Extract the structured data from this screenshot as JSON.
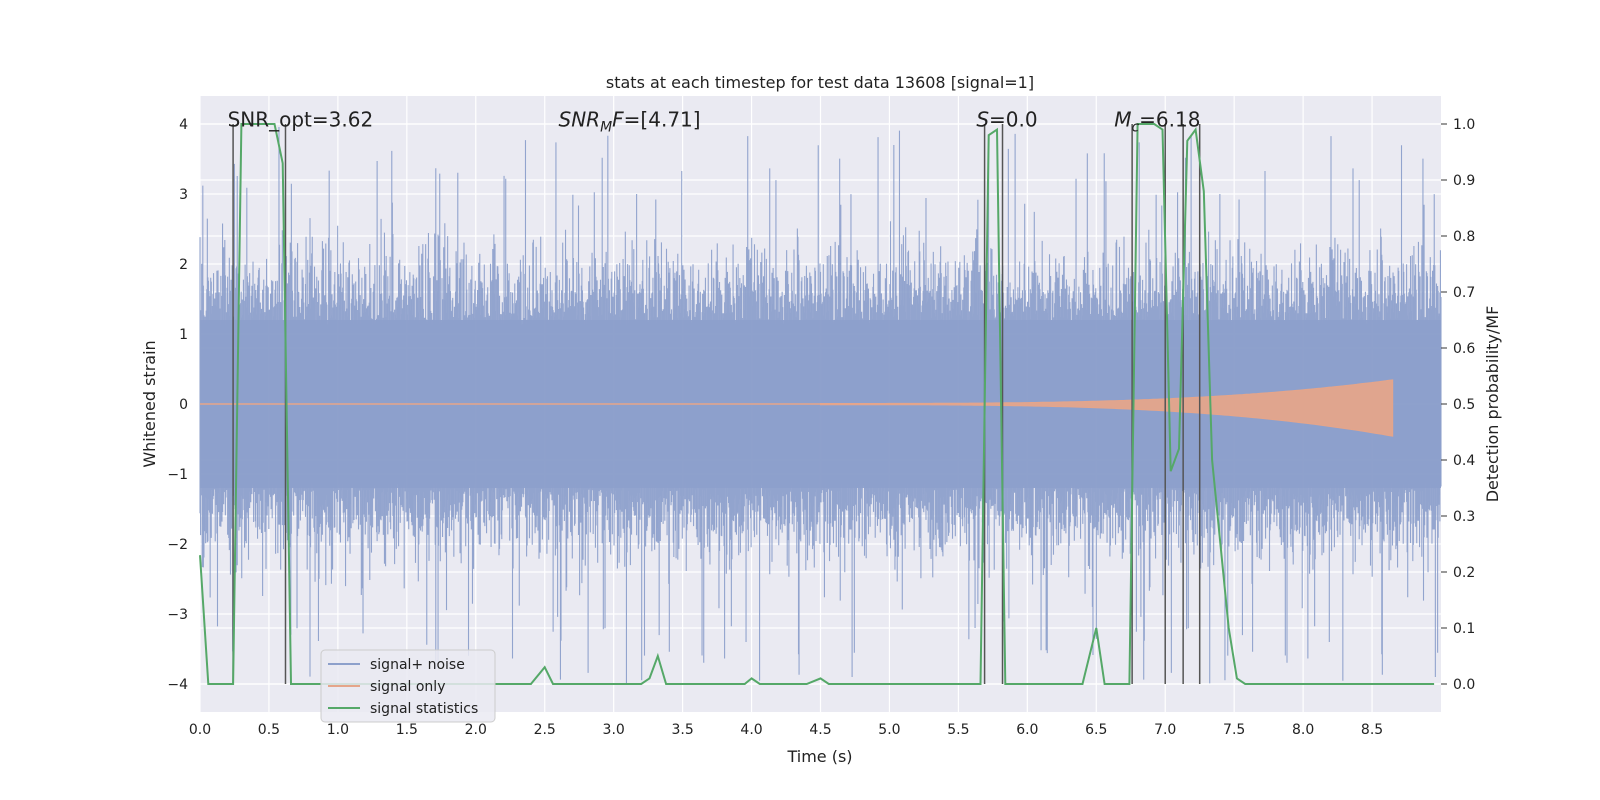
{
  "chart_data": {
    "type": "line",
    "title": "stats at each timestep for test data 13608 [signal=1]",
    "xlabel": "Time (s)",
    "ylabel_left": "Whitened strain",
    "ylabel_right": "Detection probability/MF",
    "xlim": [
      0.0,
      9.0
    ],
    "ylim_left": [
      -4.4,
      4.4
    ],
    "ylim_right": [
      -0.05,
      1.05
    ],
    "xticks": [
      0.0,
      0.5,
      1.0,
      1.5,
      2.0,
      2.5,
      3.0,
      3.5,
      4.0,
      4.5,
      5.0,
      5.5,
      6.0,
      6.5,
      7.0,
      7.5,
      8.0,
      8.5
    ],
    "xtick_labels": [
      "0.0",
      "0.5",
      "1.0",
      "1.5",
      "2.0",
      "2.5",
      "3.0",
      "3.5",
      "4.0",
      "4.5",
      "5.0",
      "5.5",
      "6.0",
      "6.5",
      "7.0",
      "7.5",
      "8.0",
      "8.5"
    ],
    "yticks_left": [
      -4,
      -3,
      -2,
      -1,
      0,
      1,
      2,
      3,
      4
    ],
    "ytick_labels_left": [
      "−4",
      "−3",
      "−2",
      "−1",
      "0",
      "1",
      "2",
      "3",
      "4"
    ],
    "yticks_right": [
      0.0,
      0.1,
      0.2,
      0.3,
      0.4,
      0.5,
      0.6,
      0.7,
      0.8,
      0.9,
      1.0
    ],
    "ytick_labels_right": [
      "0.0",
      "0.1",
      "0.2",
      "0.3",
      "0.4",
      "0.5",
      "0.6",
      "0.7",
      "0.8",
      "0.9",
      "1.0"
    ],
    "annotations": [
      {
        "id": "snr-opt",
        "text": "SNR_opt=3.62",
        "x": 0.2,
        "y": 4.05
      },
      {
        "id": "snr-mf",
        "base": "SNR",
        "sub": "M",
        "tail": "F=[4.71]",
        "x": 2.6,
        "y": 4.05
      },
      {
        "id": "s-stat",
        "base": "S",
        "sub": "",
        "tail": "=0.0",
        "x": 5.63,
        "y": 4.05
      },
      {
        "id": "chirp-mass",
        "base": "M",
        "sub": "c",
        "tail": "=6.18",
        "x": 6.63,
        "y": 4.05
      }
    ],
    "vertical_lines": [
      0.24,
      0.62,
      5.69,
      5.82,
      6.76,
      7.0,
      7.13,
      7.25
    ],
    "legend": {
      "position": "lower-left",
      "entries": [
        {
          "label": "signal+ noise",
          "color": "#8da0cb"
        },
        {
          "label": "signal only",
          "color": "#e5a58a"
        },
        {
          "label": "signal statistics",
          "color": "#55a868"
        }
      ]
    },
    "series": [
      {
        "name": "signal statistics",
        "axis": "right",
        "color": "#55a868",
        "x": [
          0.0,
          0.06,
          0.12,
          0.18,
          0.24,
          0.3,
          0.36,
          0.42,
          0.48,
          0.54,
          0.6,
          0.66,
          0.72,
          0.78,
          2.4,
          2.5,
          2.56,
          3.2,
          3.26,
          3.32,
          3.38,
          3.95,
          4.0,
          4.06,
          4.4,
          4.5,
          4.56,
          5.6,
          5.66,
          5.72,
          5.78,
          5.84,
          5.9,
          6.4,
          6.45,
          6.5,
          6.56,
          6.62,
          6.68,
          6.74,
          6.8,
          6.86,
          6.92,
          6.98,
          7.04,
          7.1,
          7.16,
          7.22,
          7.28,
          7.34,
          7.4,
          7.46,
          7.52,
          7.58,
          7.64,
          8.95
        ],
        "y": [
          0.23,
          0.0,
          0.0,
          0.0,
          0.0,
          1.0,
          1.0,
          1.0,
          1.0,
          1.0,
          0.93,
          0.0,
          0.0,
          0.0,
          0.0,
          0.03,
          0.0,
          0.0,
          0.01,
          0.05,
          0.0,
          0.0,
          0.01,
          0.0,
          0.0,
          0.01,
          0.0,
          0.0,
          0.0,
          0.98,
          0.99,
          0.0,
          0.0,
          0.0,
          0.05,
          0.1,
          0.0,
          0.0,
          0.0,
          0.0,
          1.0,
          1.0,
          1.0,
          0.99,
          0.38,
          0.42,
          0.97,
          0.99,
          0.88,
          0.4,
          0.25,
          0.1,
          0.01,
          0.0,
          0.0,
          0.0
        ]
      }
    ],
    "noise_band": {
      "name": "signal+ noise",
      "axis": "left",
      "color": "#8da0cb",
      "typical_amplitude": 1.5,
      "peak_amplitude": 4.0
    },
    "signal_only": {
      "name": "signal only",
      "axis": "left",
      "color": "#e5a58a",
      "start_time": 4.5,
      "end_time": 8.65,
      "max_amplitude": 0.45
    }
  }
}
